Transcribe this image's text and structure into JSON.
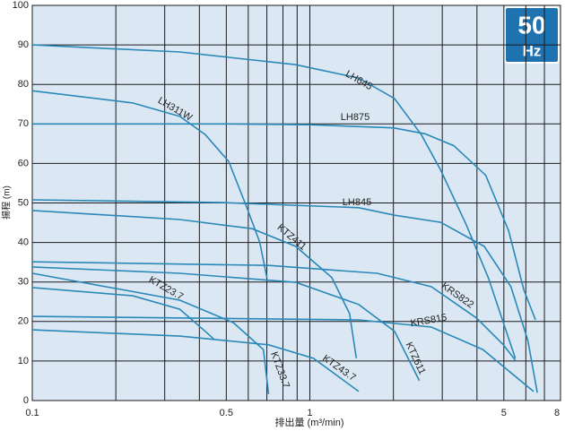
{
  "chart_data": {
    "type": "line",
    "x_label": "排出量 (m³/min)",
    "y_label": "揚程 (m)",
    "badge": {
      "value": "50",
      "unit": "Hz"
    },
    "log_x": true,
    "grid": true,
    "color": "#2a88b8",
    "xlim": [
      0.1,
      8
    ],
    "ylim": [
      0,
      100
    ],
    "xticks": [
      0.1,
      0.5,
      1,
      5,
      8
    ],
    "xminor": [
      0.2,
      0.3,
      0.4,
      0.6,
      0.7,
      0.8,
      0.9,
      2,
      3,
      4,
      6,
      7
    ],
    "yticks": [
      0,
      10,
      20,
      30,
      40,
      50,
      60,
      70,
      80,
      90,
      100
    ],
    "series": [
      {
        "name": "LH645",
        "x": [
          0.1,
          0.34,
          0.89,
          1.5,
          2.02,
          2.52,
          2.96,
          3.65,
          4.4,
          5.1,
          5.5
        ],
        "values": [
          90,
          88.2,
          85,
          81.6,
          76.4,
          67.3,
          58.3,
          44.7,
          31,
          17.5,
          10.7
        ]
      },
      {
        "name": "LH875",
        "x": [
          0.1,
          0.5,
          1,
          2,
          2.6,
          3.3,
          4.3,
          5.2,
          5.9,
          6.5
        ],
        "values": [
          70,
          70,
          69.8,
          69,
          67.5,
          64.5,
          57,
          43,
          28,
          20.4
        ]
      },
      {
        "name": "LH311W",
        "x": [
          0.1,
          0.23,
          0.34,
          0.42,
          0.51,
          0.59,
          0.66,
          0.7
        ],
        "values": [
          78.4,
          75.3,
          71.9,
          67.3,
          60.5,
          49.2,
          40.1,
          31.1
        ]
      },
      {
        "name": "LH845",
        "x": [
          0.1,
          0.49,
          1.5,
          2.02,
          2.96,
          4.25,
          5.3,
          6.1,
          6.6
        ],
        "values": [
          50.8,
          50.1,
          48.8,
          46.9,
          45.1,
          39,
          28.8,
          15.2,
          2
        ]
      },
      {
        "name": "KTZ411",
        "x": [
          0.1,
          0.34,
          0.62,
          0.89,
          1.2,
          1.39,
          1.47
        ],
        "values": [
          48.1,
          45.8,
          43.5,
          39,
          31.1,
          22,
          10.7
        ]
      },
      {
        "name": "KRS822",
        "x": [
          0.1,
          0.71,
          1.75,
          2.74,
          3.98,
          4.98,
          5.5
        ],
        "values": [
          35.1,
          34.2,
          32.2,
          28.8,
          20.9,
          14.1,
          10.2
        ]
      },
      {
        "name": "KRS815",
        "x": [
          0.1,
          1.5,
          2.74,
          4.2,
          6.4
        ],
        "values": [
          21.3,
          20.4,
          18.6,
          12.9,
          2.3
        ]
      },
      {
        "name": "KTZ611",
        "x": [
          0.1,
          0.34,
          0.89,
          1.5,
          2.02,
          2.48
        ],
        "values": [
          33.8,
          32.2,
          29.9,
          24.3,
          17.5,
          5
        ]
      },
      {
        "name": "KTZ23.7",
        "x": [
          0.1,
          0.23,
          0.34,
          0.42,
          0.45
        ],
        "values": [
          28.6,
          26.5,
          23.1,
          17.5,
          15.6
        ]
      },
      {
        "name": "KTZ33.7",
        "x": [
          0.1,
          0.34,
          0.53,
          0.68,
          0.71
        ],
        "values": [
          32.2,
          25.4,
          19.7,
          12.9,
          1.6
        ]
      },
      {
        "name": "KTZ43.7",
        "x": [
          0.1,
          0.34,
          0.71,
          1.03,
          1.5
        ],
        "values": [
          17.9,
          16.3,
          14.1,
          10.7,
          2.3
        ]
      }
    ]
  }
}
